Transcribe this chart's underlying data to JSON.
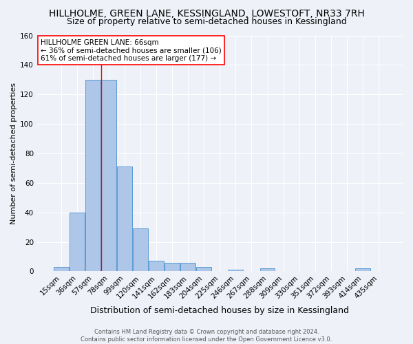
{
  "title": "HILLHOLME, GREEN LANE, KESSINGLAND, LOWESTOFT, NR33 7RH",
  "subtitle": "Size of property relative to semi-detached houses in Kessingland",
  "xlabel": "Distribution of semi-detached houses by size in Kessingland",
  "ylabel": "Number of semi-detached properties",
  "footer_line1": "Contains HM Land Registry data © Crown copyright and database right 2024.",
  "footer_line2": "Contains public sector information licensed under the Open Government Licence v3.0.",
  "categories": [
    "15sqm",
    "36sqm",
    "57sqm",
    "78sqm",
    "99sqm",
    "120sqm",
    "141sqm",
    "162sqm",
    "183sqm",
    "204sqm",
    "225sqm",
    "246sqm",
    "267sqm",
    "288sqm",
    "309sqm",
    "330sqm",
    "351sqm",
    "372sqm",
    "393sqm",
    "414sqm",
    "435sqm"
  ],
  "values": [
    3,
    40,
    130,
    130,
    71,
    29,
    7,
    6,
    6,
    3,
    0,
    1,
    0,
    2,
    0,
    0,
    0,
    0,
    0,
    2,
    0
  ],
  "bar_color": "#aec6e8",
  "bar_edge_color": "#5b9bd5",
  "annotation_line1": "HILLHOLME GREEN LANE: 66sqm",
  "annotation_line2": "← 36% of semi-detached houses are smaller (106)",
  "annotation_line3": "61% of semi-detached houses are larger (177) →",
  "annotation_box_color": "white",
  "annotation_box_edge_color": "red",
  "red_line_x": 2.5,
  "ylim": [
    0,
    160
  ],
  "yticks": [
    0,
    20,
    40,
    60,
    80,
    100,
    120,
    140,
    160
  ],
  "bg_color": "#eef2f8",
  "grid_color": "white",
  "title_fontsize": 10,
  "subtitle_fontsize": 9,
  "xlabel_fontsize": 9,
  "ylabel_fontsize": 8,
  "tick_fontsize": 7.5,
  "annotation_fontsize": 7.5,
  "footer_fontsize": 6
}
